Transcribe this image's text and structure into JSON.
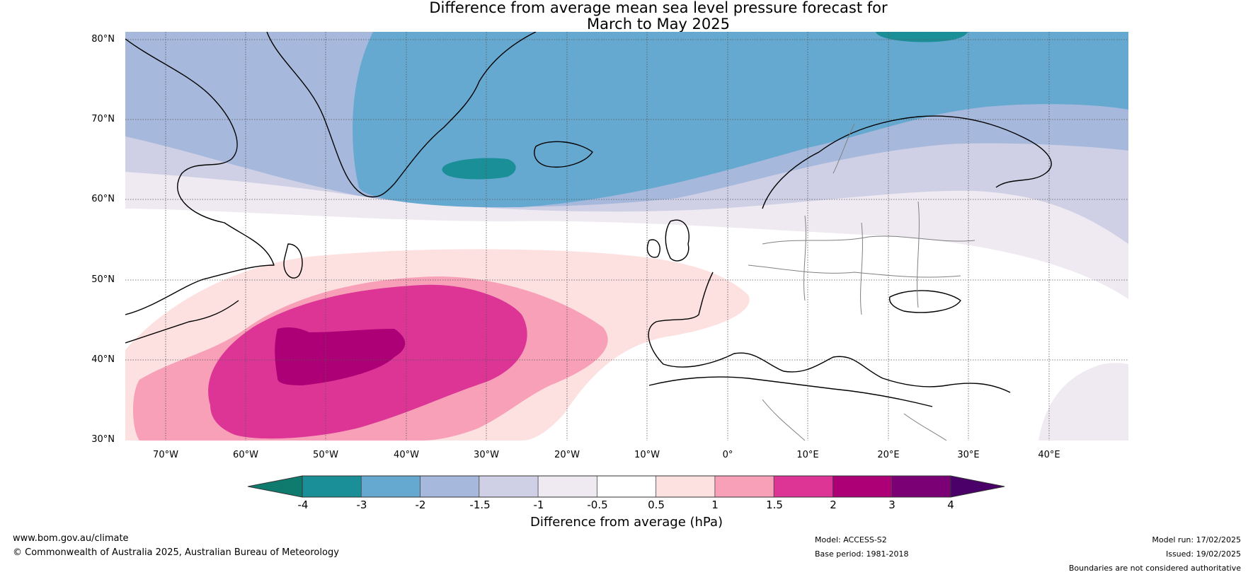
{
  "title": {
    "line1": "Difference from average mean sea level pressure forecast for",
    "line2": "March to May 2025"
  },
  "map": {
    "lat_labels": [
      "80°N",
      "70°N",
      "60°N",
      "50°N",
      "40°N",
      "30°N"
    ],
    "lon_labels": [
      "70°W",
      "60°W",
      "50°W",
      "40°W",
      "30°W",
      "20°W",
      "10°W",
      "0°",
      "10°E",
      "20°E",
      "30°E",
      "40°E"
    ]
  },
  "colorbar": {
    "ticks": [
      "-4",
      "-3",
      "-2",
      "-1.5",
      "-1",
      "-0.5",
      "0.5",
      "1",
      "1.5",
      "2",
      "3",
      "4"
    ],
    "colors": [
      "#0f7b6e",
      "#1b8f98",
      "#66a9d0",
      "#a6b8dc",
      "#cfd0e5",
      "#efeaf2",
      "#ffffff",
      "#fde0e0",
      "#f7a0b8",
      "#dc3596",
      "#ad0077",
      "#7b0076",
      "#4a0068"
    ],
    "label": "Difference from average (hPa)"
  },
  "footer": {
    "website": "www.bom.gov.au/climate",
    "copyright": "© Commonwealth of Australia 2025, Australian Bureau of Meteorology",
    "model": "Model: ACCESS-S2",
    "base_period": "Base period: 1981-2018",
    "model_run": "Model run: 17/02/2025",
    "issued": "Issued: 19/02/2025",
    "disclaimer": "Boundaries are not considered authoritative"
  }
}
